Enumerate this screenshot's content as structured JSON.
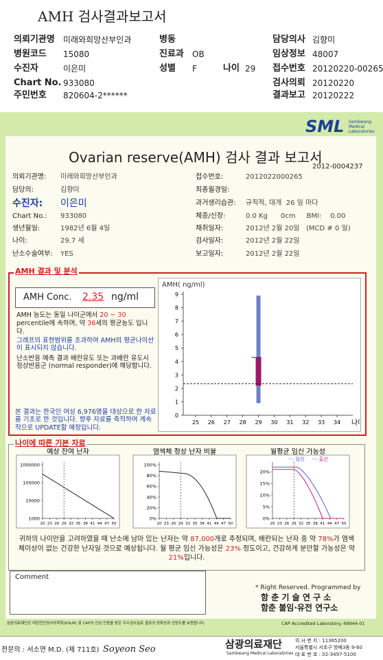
{
  "header": {
    "title": "AMH 검사결과보고서",
    "items": [
      {
        "label": "의뢰기관명",
        "value": "미래와희망산부인과"
      },
      {
        "label": "병동"
      },
      {
        "label": "담당의사",
        "value": "김향미"
      },
      {
        "label": "병원코드",
        "value": "15080"
      },
      {
        "label": "진료과",
        "value": "OB"
      },
      {
        "label": "임상정보",
        "value": "48007"
      },
      {
        "label": "수진자",
        "value": "이은미"
      },
      {
        "label": "성별",
        "value": "F"
      },
      {
        "label": "나이",
        "value": "29"
      },
      {
        "label": "접수번호",
        "value": "20120220-00265"
      },
      {
        "label": "Chart No.",
        "value": "933080"
      },
      {
        "label": "검사의뢰",
        "value": "20120220"
      },
      {
        "label": "주민번호",
        "value": "820604-2******"
      },
      {
        "label": "결과보고",
        "value": "20120222"
      }
    ]
  },
  "report": {
    "logo": "SML",
    "logo_sub": "Samkwang Medical Laboratories",
    "title": "Ovarian reserve(AMH) 검사 결과 보고서",
    "number": "2012-0004237",
    "info_left": [
      {
        "label": "의뢰기관명:",
        "value": "미래와희망산부인과"
      },
      {
        "label": "담당의:",
        "value": "김향미"
      },
      {
        "label": "수진자:",
        "value": "이은미"
      },
      {
        "label": "Chart No.:",
        "value": "933080"
      },
      {
        "label": "생년월일:",
        "value": "1982년 6월 4일"
      },
      {
        "label": "나이:",
        "value": "29.7 세"
      },
      {
        "label": "난소수술여부:",
        "value": "YES"
      }
    ],
    "info_right": [
      {
        "label": "접수번호:",
        "value": "2012022000265"
      },
      {
        "label": "최종월경일:"
      },
      {
        "label": "과거생리습관:",
        "value": "규칙적, 대개  26 일 마다"
      },
      {
        "label": "체중/신장:",
        "value": "0.0 Kg      0cm     BMI:    0.00"
      },
      {
        "label": "채취일자:",
        "value": "2012년 2월 20일   (MCD # 0 일)"
      },
      {
        "label": "검사일자:",
        "value": "2012년 2월 22일"
      },
      {
        "label": "보고일자:",
        "value": "2012년 2월 22일"
      }
    ]
  },
  "amh": {
    "heading": "AMH 결과 및 분석",
    "conc_label": "AMH Conc.",
    "conc_value": 2.35,
    "conc_unit": "ng/ml",
    "text1": [
      "AMH 농도는 동일 나이군에서 ",
      "20 ~ 30",
      " percentile에 속하며, 약 ",
      "36",
      "세의 평균농도 입니다."
    ],
    "text2": "그래프의 표현범위를 초과하여 AMH의 평균나이선이 표시되지 않습니다.",
    "text3": "난소반응 예측 결과 배란유도 또는 과배란 유도시 정상반응군 (normal responder)에 해당합니다.",
    "text4": "본 결과는 한국인 여성 6,976명을 대상으로 한 자료를 기초로 한 것입니다. 향후 자료를 축적하여 계속적으로 UPDATE할 예정입니다."
  },
  "amh_chart": {
    "type": "box",
    "ylabel": "AMH( ng/ml)",
    "xlabel": "나이",
    "ylim": [
      0,
      9
    ],
    "yticks": [
      0,
      1,
      2,
      3,
      4,
      5,
      6,
      7,
      8,
      9
    ],
    "xlim": [
      24,
      35
    ],
    "xticks": [
      25,
      26,
      27,
      28,
      29,
      30,
      31,
      32,
      33,
      34
    ],
    "box": {
      "x": 29,
      "min": 0.9,
      "q1": 2.2,
      "q3": 4.3,
      "max": 8.9
    },
    "whisker_color": "#6f80c8",
    "box_color": "#a0186a"
  },
  "age_section": {
    "heading": "나이에 따른 기본 자료",
    "charts": [
      {
        "title": "예상 잔여 난자",
        "log": true,
        "ylim": [
          1000,
          1000000
        ],
        "yticks": [
          1000,
          10000,
          100000,
          1000000
        ],
        "xlim": [
          20,
          50
        ],
        "xticks": [
          20,
          23,
          26,
          29,
          32,
          35,
          38,
          41,
          44,
          47,
          50
        ]
      },
      {
        "title": "염색체 정상 난자 비율",
        "ylim": [
          0,
          100
        ],
        "yticks": [
          {
            "value": 0,
            "label": "0%"
          },
          {
            "value": 20,
            "label": "20%"
          },
          {
            "value": 40,
            "label": "40%"
          },
          {
            "value": 60,
            "label": "60%"
          },
          {
            "value": 80,
            "label": "80%"
          },
          {
            "value": 100,
            "label": "100%"
          }
        ],
        "xlim": [
          20,
          50
        ],
        "xticks": [
          20,
          23,
          26,
          29,
          32,
          35,
          38,
          41,
          44,
          47,
          50
        ]
      },
      {
        "title": "월평균 임신 가능성",
        "ylim": [
          0,
          23
        ],
        "yticks": [
          {
            "value": 0,
            "label": "0%"
          },
          {
            "value": 5,
            "label": "5%"
          },
          {
            "value": 10,
            "label": "10%"
          },
          {
            "value": 15,
            "label": "15%"
          },
          {
            "value": 20,
            "label": "20%"
          }
        ],
        "xlim": [
          20,
          50
        ],
        "xticks": [
          20,
          23,
          26,
          29,
          32,
          35,
          38,
          41,
          44,
          47,
          50
        ],
        "series": [
          {
            "name": "--: 임신",
            "color": "#5060d0"
          },
          {
            "name": "--: 출산",
            "color": "#c0207f"
          }
        ]
      }
    ],
    "summary": [
      "귀하의 나이만을 고려하였을 때 난소에 남아 있는 난자는 약 ",
      "87,000",
      "개로 추정되며, 배란되는 난자 중 약 ",
      "78%",
      "가 염색체이상이 없는 건강한 난자일 것으로 예상됩니다. 월 평균 임신 가능성은 ",
      "23%",
      " 정도이고, 건강하게 분만할 가능성은 약 ",
      "21%",
      "입니다."
    ]
  },
  "comment": {
    "label": "Comment"
  },
  "credits": [
    "* Right Reserved. Programmed by",
    "함 춘 기 술 연 구 소",
    "함춘 불임·유전 연구소"
  ],
  "footer": {
    "note": "삼광의료재단은 대한진단검사의학회(KSLM) 및 CAP의 신임 인증을 받은 우수검사실로 결과의 정확성과 신빙도를 보증합니다.",
    "cap": "CAP  Accredited  Laboratory.  69944-01",
    "doctor": "전문의 : 서소연 M.D. (제 711호)",
    "signature": "Soyeon Seo",
    "org": "삼광의료재단",
    "org_en": "Samkwang Medical Laboratories",
    "address": [
      "의 사 번 지 : 11365200",
      "서울특별시 서초구 방배3동 9-60",
      "대 표 번 호 : 02-3497-5100"
    ]
  }
}
